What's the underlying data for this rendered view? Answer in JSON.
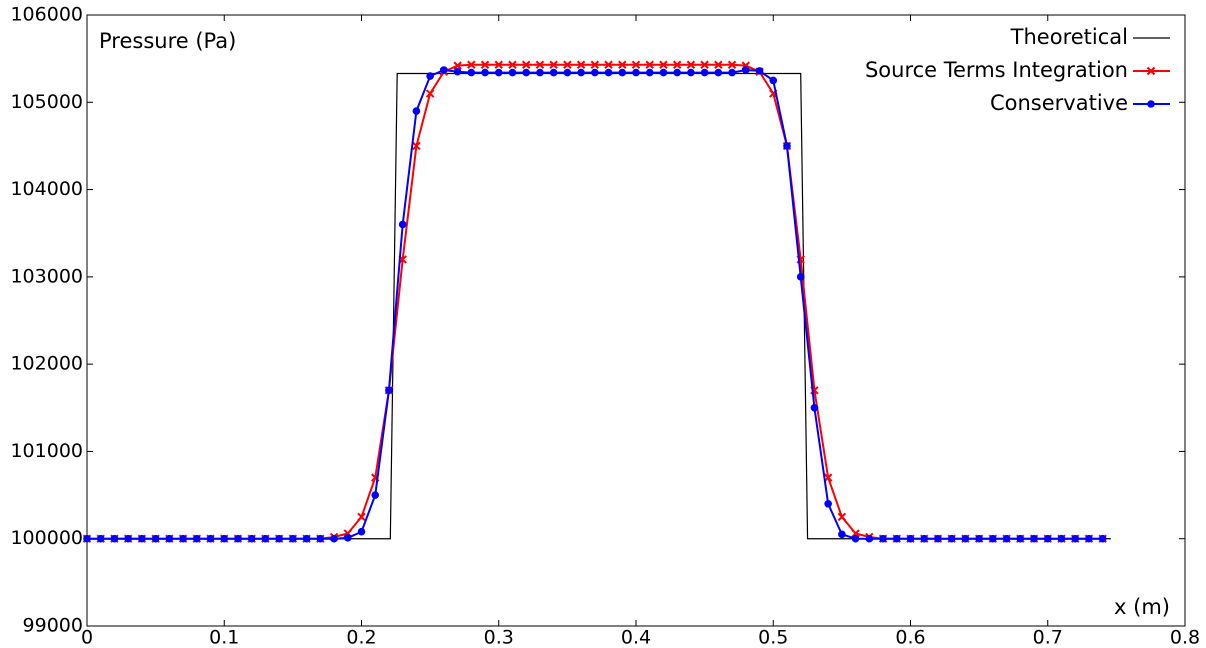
{
  "chart_data": {
    "type": "line",
    "x_label": "x (m)",
    "y_label": "Pressure (Pa)",
    "xlim": [
      0,
      0.8
    ],
    "ylim": [
      99000,
      106000
    ],
    "xticks": [
      0,
      0.1,
      0.2,
      0.3,
      0.4,
      0.5,
      0.6,
      0.7,
      0.8
    ],
    "yticks": [
      99000,
      100000,
      101000,
      102000,
      103000,
      104000,
      105000,
      106000
    ],
    "legend": "upper right",
    "series": [
      {
        "name": "Theoretical",
        "color": "#000000",
        "marker": "none",
        "x": [
          0,
          0.221,
          0.226,
          0.52,
          0.525,
          0.746
        ],
        "values": [
          100000,
          100000,
          105330,
          105330,
          100000,
          100000
        ]
      },
      {
        "name": "Source Terms Integration",
        "color": "#ff0000",
        "marker": "x",
        "x": [
          0,
          0.01,
          0.02,
          0.03,
          0.04,
          0.05,
          0.06,
          0.07,
          0.08,
          0.09,
          0.1,
          0.11,
          0.12,
          0.13,
          0.14,
          0.15,
          0.16,
          0.17,
          0.18,
          0.19,
          0.2,
          0.21,
          0.22,
          0.23,
          0.24,
          0.25,
          0.26,
          0.27,
          0.28,
          0.29,
          0.3,
          0.31,
          0.32,
          0.33,
          0.34,
          0.35,
          0.36,
          0.37,
          0.38,
          0.39,
          0.4,
          0.41,
          0.42,
          0.43,
          0.44,
          0.45,
          0.46,
          0.47,
          0.48,
          0.49,
          0.5,
          0.51,
          0.52,
          0.53,
          0.54,
          0.55,
          0.56,
          0.57,
          0.58,
          0.59,
          0.6,
          0.61,
          0.62,
          0.63,
          0.64,
          0.65,
          0.66,
          0.67,
          0.68,
          0.69,
          0.7,
          0.71,
          0.72,
          0.73,
          0.74
        ],
        "values": [
          100000,
          100000,
          100000,
          100000,
          100000,
          100000,
          100000,
          100000,
          100000,
          100000,
          100000,
          100000,
          100000,
          100000,
          100000,
          100000,
          100000,
          100000,
          100020,
          100060,
          100250,
          100700,
          101700,
          103200,
          104500,
          105100,
          105350,
          105420,
          105430,
          105430,
          105430,
          105430,
          105430,
          105430,
          105430,
          105430,
          105430,
          105430,
          105430,
          105430,
          105430,
          105430,
          105430,
          105430,
          105430,
          105430,
          105430,
          105430,
          105420,
          105350,
          105100,
          104500,
          103200,
          101700,
          100700,
          100250,
          100060,
          100020,
          100000,
          100000,
          100000,
          100000,
          100000,
          100000,
          100000,
          100000,
          100000,
          100000,
          100000,
          100000,
          100000,
          100000,
          100000,
          100000,
          100000
        ]
      },
      {
        "name": "Conservative",
        "color": "#0000ff",
        "marker": "o",
        "x": [
          0,
          0.01,
          0.02,
          0.03,
          0.04,
          0.05,
          0.06,
          0.07,
          0.08,
          0.09,
          0.1,
          0.11,
          0.12,
          0.13,
          0.14,
          0.15,
          0.16,
          0.17,
          0.18,
          0.19,
          0.2,
          0.21,
          0.22,
          0.23,
          0.24,
          0.25,
          0.26,
          0.27,
          0.28,
          0.29,
          0.3,
          0.31,
          0.32,
          0.33,
          0.34,
          0.35,
          0.36,
          0.37,
          0.38,
          0.39,
          0.4,
          0.41,
          0.42,
          0.43,
          0.44,
          0.45,
          0.46,
          0.47,
          0.48,
          0.49,
          0.5,
          0.51,
          0.52,
          0.53,
          0.54,
          0.55,
          0.56,
          0.57,
          0.58,
          0.59,
          0.6,
          0.61,
          0.62,
          0.63,
          0.64,
          0.65,
          0.66,
          0.67,
          0.68,
          0.69,
          0.7,
          0.71,
          0.72,
          0.73,
          0.74
        ],
        "values": [
          100000,
          100000,
          100000,
          100000,
          100000,
          100000,
          100000,
          100000,
          100000,
          100000,
          100000,
          100000,
          100000,
          100000,
          100000,
          100000,
          100000,
          100000,
          100000,
          100010,
          100080,
          100500,
          101700,
          103600,
          104900,
          105300,
          105370,
          105350,
          105340,
          105340,
          105340,
          105340,
          105340,
          105340,
          105340,
          105340,
          105340,
          105340,
          105340,
          105340,
          105340,
          105340,
          105340,
          105340,
          105340,
          105340,
          105340,
          105340,
          105370,
          105360,
          105250,
          104500,
          103000,
          101500,
          100400,
          100050,
          100000,
          100000,
          100000,
          100000,
          100000,
          100000,
          100000,
          100000,
          100000,
          100000,
          100000,
          100000,
          100000,
          100000,
          100000,
          100000,
          100000,
          100000,
          100000
        ]
      }
    ]
  }
}
